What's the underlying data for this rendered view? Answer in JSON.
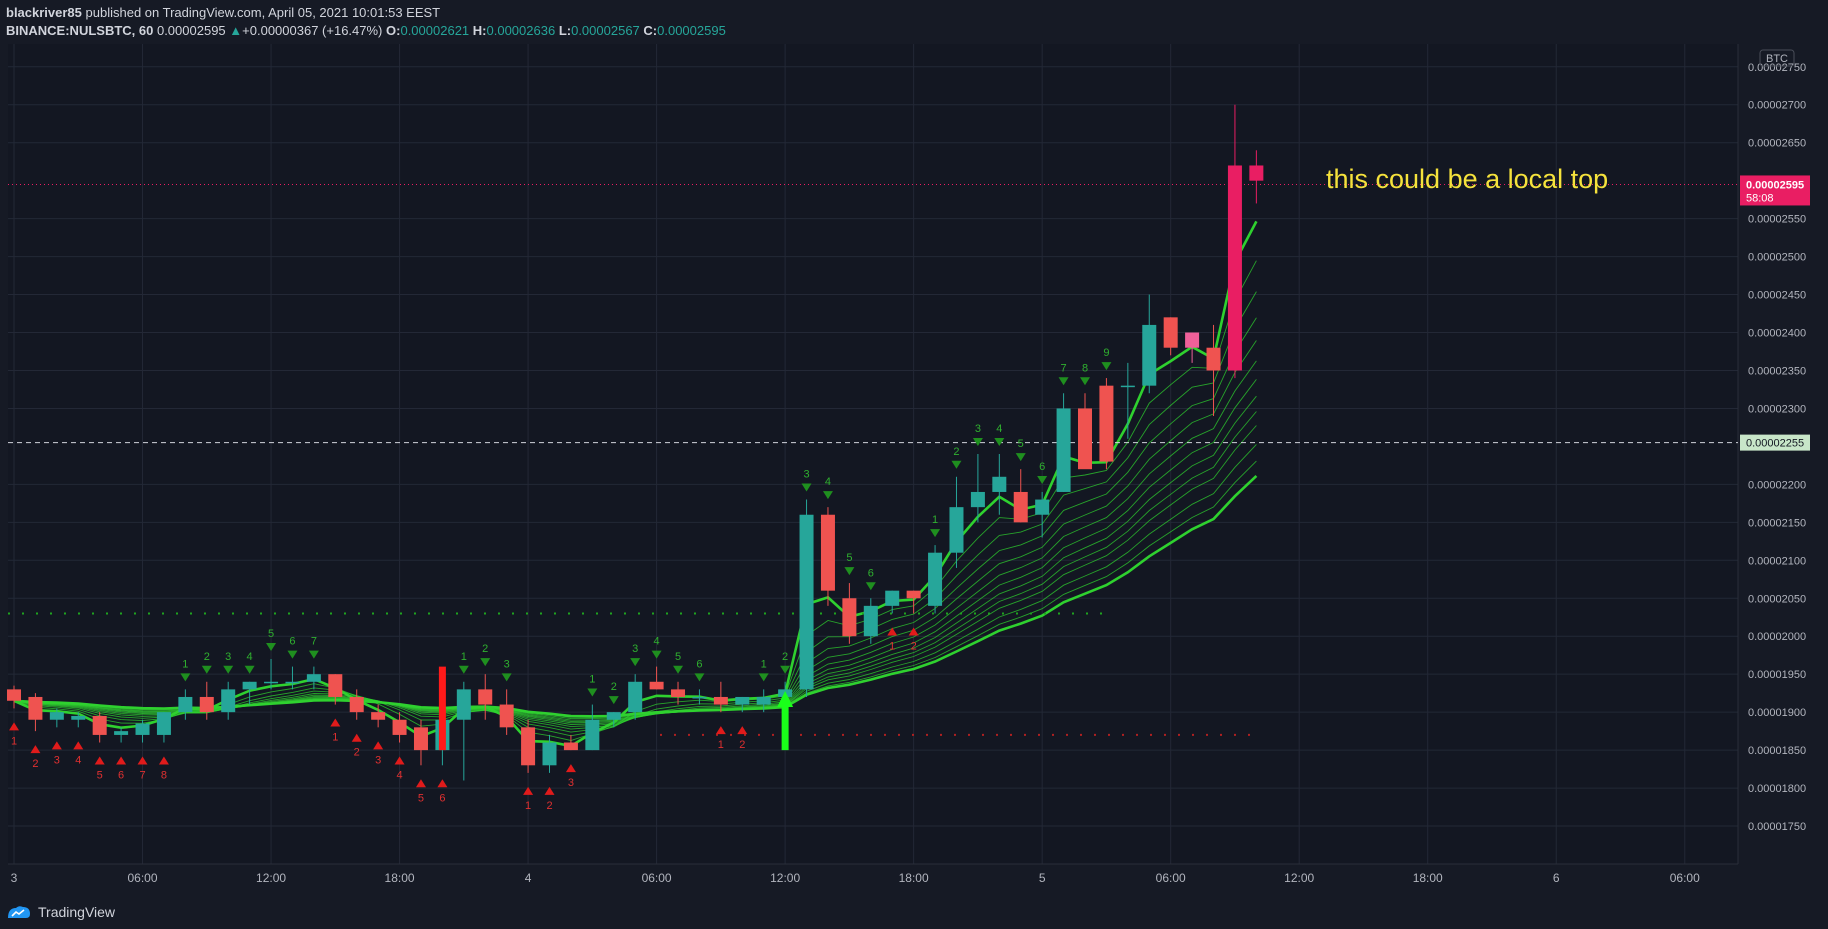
{
  "header": {
    "author": "blackriver85",
    "published_text": " published on TradingView.com, April 05, 2021 10:01:53 EEST",
    "symbol": "BINANCE:NULSBTC, 60",
    "last_price": "0.00002595",
    "change_arrow": "▲",
    "change": "+0.00000367 (+16.47%)",
    "o_label": "O:",
    "o_value": "0.00002621",
    "h_label": "H:",
    "h_value": "0.00002636",
    "l_label": "L:",
    "l_value": "0.00002567",
    "c_label": "C:",
    "c_value": "0.00002595"
  },
  "annotation": "this could be a local top",
  "footer": {
    "brand": "TradingView",
    "logo_icon": "tradingview-logo-icon"
  },
  "colors": {
    "up": "#26a69a",
    "down": "#ef5350",
    "pink": "#f0609a",
    "last": "#e91e63",
    "ribbon": "#2fd12f",
    "annotation": "#f5e23c"
  },
  "chart_data": {
    "type": "candlestick",
    "currency_label": "BTC",
    "ylim": [
      1.7e-05,
      2.78e-05
    ],
    "y_ticks": [
      "0.00001750",
      "0.00001800",
      "0.00001850",
      "0.00001900",
      "0.00001950",
      "0.00002000",
      "0.00002050",
      "0.00002100",
      "0.00002150",
      "0.00002200",
      "0.00002300",
      "0.00002350",
      "0.00002400",
      "0.00002450",
      "0.00002500",
      "0.00002550",
      "0.00002650",
      "0.00002700",
      "0.00002750"
    ],
    "x_ticks": [
      {
        "label": "3",
        "i": 0
      },
      {
        "label": "06:00",
        "i": 6
      },
      {
        "label": "12:00",
        "i": 12
      },
      {
        "label": "18:00",
        "i": 18
      },
      {
        "label": "4",
        "i": 24
      },
      {
        "label": "06:00",
        "i": 30
      },
      {
        "label": "12:00",
        "i": 36
      },
      {
        "label": "18:00",
        "i": 42
      },
      {
        "label": "5",
        "i": 48
      },
      {
        "label": "06:00",
        "i": 54
      },
      {
        "label": "12:00",
        "i": 60
      },
      {
        "label": "18:00",
        "i": 66
      },
      {
        "label": "6",
        "i": 72
      },
      {
        "label": "06:00",
        "i": 78
      }
    ],
    "price_label": {
      "value": "0.00002595",
      "countdown": "58:08"
    },
    "hline_label": {
      "value": "0.00002255"
    },
    "candles": [
      [
        1.93e-05,
        1.935e-05,
        1.905e-05,
        1.915e-05
      ],
      [
        1.92e-05,
        1.925e-05,
        1.875e-05,
        1.89e-05
      ],
      [
        1.89e-05,
        1.905e-05,
        1.88e-05,
        1.9e-05
      ],
      [
        1.89e-05,
        1.9e-05,
        1.88e-05,
        1.895e-05
      ],
      [
        1.895e-05,
        1.9e-05,
        1.86e-05,
        1.87e-05
      ],
      [
        1.87e-05,
        1.88e-05,
        1.86e-05,
        1.875e-05
      ],
      [
        1.87e-05,
        1.89e-05,
        1.86e-05,
        1.885e-05
      ],
      [
        1.87e-05,
        1.9e-05,
        1.86e-05,
        1.9e-05
      ],
      [
        1.9e-05,
        1.93e-05,
        1.89e-05,
        1.92e-05
      ],
      [
        1.92e-05,
        1.94e-05,
        1.89e-05,
        1.9e-05
      ],
      [
        1.9e-05,
        1.94e-05,
        1.89e-05,
        1.93e-05
      ],
      [
        1.93e-05,
        1.94e-05,
        1.91e-05,
        1.94e-05
      ],
      [
        1.94e-05,
        1.97e-05,
        1.93e-05,
        1.94e-05
      ],
      [
        1.94e-05,
        1.96e-05,
        1.93e-05,
        1.94e-05
      ],
      [
        1.94e-05,
        1.96e-05,
        1.93e-05,
        1.95e-05
      ],
      [
        1.95e-05,
        1.95e-05,
        1.91e-05,
        1.92e-05
      ],
      [
        1.92e-05,
        1.93e-05,
        1.89e-05,
        1.9e-05
      ],
      [
        1.9e-05,
        1.91e-05,
        1.88e-05,
        1.89e-05
      ],
      [
        1.89e-05,
        1.9e-05,
        1.86e-05,
        1.87e-05
      ],
      [
        1.88e-05,
        1.89e-05,
        1.83e-05,
        1.85e-05
      ],
      [
        1.85e-05,
        1.9e-05,
        1.83e-05,
        1.89e-05
      ],
      [
        1.89e-05,
        1.94e-05,
        1.81e-05,
        1.93e-05
      ],
      [
        1.93e-05,
        1.95e-05,
        1.89e-05,
        1.91e-05
      ],
      [
        1.91e-05,
        1.93e-05,
        1.87e-05,
        1.88e-05
      ],
      [
        1.88e-05,
        1.89e-05,
        1.82e-05,
        1.83e-05
      ],
      [
        1.83e-05,
        1.87e-05,
        1.82e-05,
        1.86e-05
      ],
      [
        1.86e-05,
        1.87e-05,
        1.85e-05,
        1.85e-05
      ],
      [
        1.85e-05,
        1.91e-05,
        1.85e-05,
        1.89e-05
      ],
      [
        1.89e-05,
        1.9e-05,
        1.88e-05,
        1.9e-05
      ],
      [
        1.9e-05,
        1.95e-05,
        1.89e-05,
        1.94e-05
      ],
      [
        1.94e-05,
        1.96e-05,
        1.93e-05,
        1.93e-05
      ],
      [
        1.93e-05,
        1.94e-05,
        1.91e-05,
        1.92e-05
      ],
      [
        1.92e-05,
        1.93e-05,
        1.91e-05,
        1.92e-05
      ],
      [
        1.92e-05,
        1.94e-05,
        1.9e-05,
        1.91e-05
      ],
      [
        1.91e-05,
        1.92e-05,
        1.9e-05,
        1.92e-05
      ],
      [
        1.91e-05,
        1.93e-05,
        1.9e-05,
        1.92e-05
      ],
      [
        1.92e-05,
        1.94e-05,
        1.91e-05,
        1.93e-05
      ],
      [
        1.93e-05,
        2.18e-05,
        1.92e-05,
        2.16e-05
      ],
      [
        2.16e-05,
        2.17e-05,
        2.04e-05,
        2.06e-05
      ],
      [
        2.05e-05,
        2.07e-05,
        1.99e-05,
        2e-05
      ],
      [
        2e-05,
        2.05e-05,
        1.99e-05,
        2.04e-05
      ],
      [
        2.04e-05,
        2.06e-05,
        2.03e-05,
        2.06e-05
      ],
      [
        2.06e-05,
        2.06e-05,
        2.03e-05,
        2.05e-05
      ],
      [
        2.04e-05,
        2.12e-05,
        2.03e-05,
        2.11e-05
      ],
      [
        2.11e-05,
        2.21e-05,
        2.09e-05,
        2.17e-05
      ],
      [
        2.17e-05,
        2.24e-05,
        2.15e-05,
        2.19e-05
      ],
      [
        2.19e-05,
        2.24e-05,
        2.16e-05,
        2.21e-05
      ],
      [
        2.19e-05,
        2.22e-05,
        2.15e-05,
        2.15e-05
      ],
      [
        2.16e-05,
        2.19e-05,
        2.13e-05,
        2.18e-05
      ],
      [
        2.19e-05,
        2.32e-05,
        2.19e-05,
        2.3e-05
      ],
      [
        2.3e-05,
        2.32e-05,
        2.23e-05,
        2.22e-05
      ],
      [
        2.33e-05,
        2.34e-05,
        2.22e-05,
        2.23e-05
      ],
      [
        2.33e-05,
        2.36e-05,
        2.26e-05,
        2.33e-05
      ],
      [
        2.33e-05,
        2.45e-05,
        2.32e-05,
        2.41e-05
      ],
      [
        2.42e-05,
        2.42e-05,
        2.37e-05,
        2.38e-05
      ],
      [
        2.38e-05,
        2.4e-05,
        2.36e-05,
        2.4e-05
      ],
      [
        2.38e-05,
        2.41e-05,
        2.29e-05,
        2.35e-05
      ],
      [
        2.35e-05,
        2.7e-05,
        2.34e-05,
        2.62e-05
      ],
      [
        2.62e-05,
        2.64e-05,
        2.57e-05,
        2.6e-05
      ]
    ],
    "colors_override": {
      "55": "pink",
      "57": "last",
      "58": "last"
    },
    "horizontal_lines": {
      "dashed_price": 2.255e-05,
      "dotted_last": 2.595e-05,
      "dotted_green_support": 2.03e-05,
      "dotted_red": 1.87e-05
    },
    "signal_arrows": [
      {
        "i": 20,
        "dir": "down",
        "from": 1.96e-05,
        "to": 1.85e-05,
        "color": "red"
      },
      {
        "i": 36,
        "dir": "up",
        "from": 1.85e-05,
        "to": 1.92e-05,
        "color": "green"
      }
    ],
    "td_counts_top": [
      {
        "i": 8,
        "n": "1"
      },
      {
        "i": 9,
        "n": "2"
      },
      {
        "i": 10,
        "n": "3"
      },
      {
        "i": 11,
        "n": "4"
      },
      {
        "i": 12,
        "n": "5"
      },
      {
        "i": 13,
        "n": "6"
      },
      {
        "i": 14,
        "n": "7"
      },
      {
        "i": 21,
        "n": "1"
      },
      {
        "i": 22,
        "n": "2"
      },
      {
        "i": 23,
        "n": "3"
      },
      {
        "i": 27,
        "n": "1"
      },
      {
        "i": 28,
        "n": "2"
      },
      {
        "i": 29,
        "n": "3"
      },
      {
        "i": 30,
        "n": "4"
      },
      {
        "i": 31,
        "n": "5"
      },
      {
        "i": 32,
        "n": "6"
      },
      {
        "i": 35,
        "n": "1"
      },
      {
        "i": 36,
        "n": "2"
      },
      {
        "i": 37,
        "n": "3"
      },
      {
        "i": 38,
        "n": "4"
      },
      {
        "i": 39,
        "n": "5"
      },
      {
        "i": 40,
        "n": "6"
      },
      {
        "i": 43,
        "n": "1"
      },
      {
        "i": 44,
        "n": "2"
      },
      {
        "i": 45,
        "n": "3"
      },
      {
        "i": 46,
        "n": "4"
      },
      {
        "i": 47,
        "n": "5"
      },
      {
        "i": 48,
        "n": "6"
      },
      {
        "i": 49,
        "n": "7"
      },
      {
        "i": 50,
        "n": "8"
      },
      {
        "i": 51,
        "n": "9"
      }
    ],
    "td_counts_bottom": [
      {
        "i": 0,
        "n": "1"
      },
      {
        "i": 1,
        "n": "2"
      },
      {
        "i": 2,
        "n": "3"
      },
      {
        "i": 3,
        "n": "4"
      },
      {
        "i": 4,
        "n": "5"
      },
      {
        "i": 5,
        "n": "6"
      },
      {
        "i": 6,
        "n": "7"
      },
      {
        "i": 7,
        "n": "8"
      },
      {
        "i": 15,
        "n": "1"
      },
      {
        "i": 16,
        "n": "2"
      },
      {
        "i": 17,
        "n": "3"
      },
      {
        "i": 18,
        "n": "4"
      },
      {
        "i": 19,
        "n": "5"
      },
      {
        "i": 20,
        "n": "6"
      },
      {
        "i": 24,
        "n": "1"
      },
      {
        "i": 25,
        "n": "2"
      },
      {
        "i": 26,
        "n": "3"
      },
      {
        "i": 33,
        "n": "1"
      },
      {
        "i": 34,
        "n": "2"
      },
      {
        "i": 41,
        "n": "1"
      },
      {
        "i": 42,
        "n": "2"
      }
    ]
  }
}
